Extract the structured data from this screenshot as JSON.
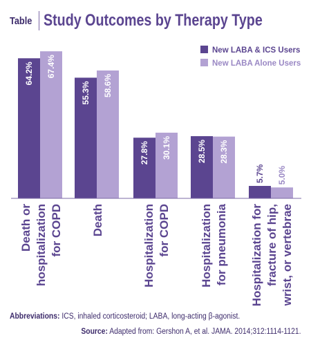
{
  "header": {
    "tag": "Table",
    "title": "Study Outcomes by Therapy Type"
  },
  "footer": {
    "abbr_label": "Abbreviations:",
    "abbr_text": " ICS, inhaled corticosteroid; LABA, long-acting β-agonist.",
    "source_label": "Source:",
    "source_text": " Adapted from: Gershon A, et al. JAMA. 2014;312:1114-1121."
  },
  "chart_data": {
    "type": "bar",
    "categories": [
      [
        "Death or",
        "hospitalization",
        "for COPD"
      ],
      [
        "Death"
      ],
      [
        "Hospitalization",
        "for COPD"
      ],
      [
        "Hospitalization",
        "for pneumonia"
      ],
      [
        "Hospitalization for",
        "fracture of hip,",
        "wrist, or vertebrae"
      ]
    ],
    "series": [
      {
        "name": "New LABA & ICS Users",
        "values": [
          64.2,
          55.3,
          27.8,
          28.5,
          5.7
        ],
        "labels": [
          "64.2%",
          "55.3%",
          "27.8%",
          "28.5%",
          "5.7%"
        ],
        "color": "#5b4590"
      },
      {
        "name": "New LABA Alone Users",
        "values": [
          67.4,
          58.6,
          30.1,
          28.3,
          5.0
        ],
        "labels": [
          "67.4%",
          "58.6%",
          "30.1%",
          "28.3%",
          "5.0%"
        ],
        "color": "#b3a2d3"
      }
    ],
    "ylim": [
      0,
      70
    ],
    "legend_position": "top-right",
    "grid": false
  }
}
